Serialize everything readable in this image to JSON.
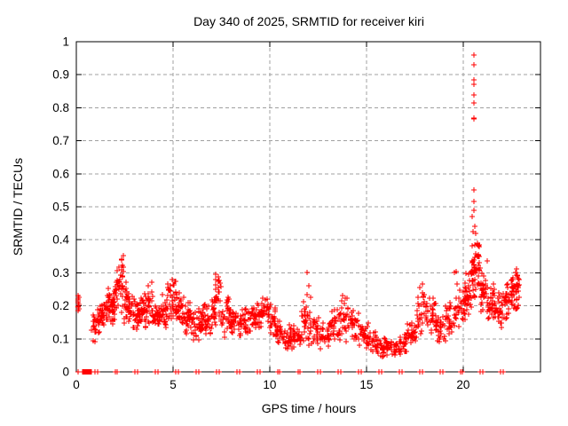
{
  "chart_data": {
    "type": "scatter",
    "title": "Day 340 of 2025, SRMTID for receiver kiri",
    "xlabel": "GPS time / hours",
    "ylabel": "SRMTID / TECUs",
    "xlim": [
      0,
      24
    ],
    "ylim": [
      0,
      1
    ],
    "x_ticks": [
      0,
      5,
      10,
      15,
      20
    ],
    "y_ticks": [
      "0",
      "0.1",
      "0.2",
      "0.3",
      "0.4",
      "0.5",
      "0.6",
      "0.7",
      "0.8",
      "0.9",
      "1"
    ],
    "grid": true,
    "grid_color": "#a0a0a0",
    "border_color": "#000000",
    "legend": "none",
    "series": [
      {
        "name": "SRMTID",
        "marker": "plus",
        "color": "#ff0000",
        "start_cluster": [
          [
            0.08,
            0.195
          ],
          [
            0.1,
            0.2
          ],
          [
            0.12,
            0.205
          ],
          [
            0.09,
            0.21
          ],
          [
            0.11,
            0.215
          ],
          [
            0.1,
            0.22
          ],
          [
            0.12,
            0.225
          ],
          [
            0.09,
            0.23
          ],
          [
            0.13,
            0.19
          ],
          [
            0.11,
            0.185
          ]
        ],
        "outliers": [
          [
            20.55,
            0.96
          ],
          [
            20.58,
            0.93
          ],
          [
            20.55,
            0.885
          ],
          [
            20.57,
            0.87
          ],
          [
            20.56,
            0.84
          ],
          [
            20.58,
            0.815
          ],
          [
            20.54,
            0.77
          ],
          [
            20.57,
            0.765
          ],
          [
            20.56,
            0.55
          ],
          [
            20.58,
            0.515
          ],
          [
            20.55,
            0.49
          ],
          [
            20.48,
            0.47
          ],
          [
            20.6,
            0.44
          ],
          [
            20.52,
            0.425
          ],
          [
            11.93,
            0.3
          ],
          [
            12.03,
            0.26
          ],
          [
            19.62,
            0.305
          ],
          [
            19.55,
            0.3
          ]
        ],
        "zeros": {
          "block": {
            "start": 0.3,
            "end": 0.8,
            "count": 26
          },
          "singles": [
            0.1
          ],
          "pairs": [
            0.95,
            1.08,
            2.0,
            2.13,
            3.05,
            3.18,
            4.1,
            4.23,
            5.15,
            5.28,
            6.2,
            6.33,
            7.25,
            7.38,
            8.3,
            8.43,
            9.35,
            9.48,
            10.4,
            10.53,
            11.45,
            11.58,
            12.5,
            12.63,
            13.55,
            13.68,
            14.6,
            14.73,
            15.65,
            15.78,
            16.7,
            16.83,
            17.75,
            17.88,
            18.8,
            18.93,
            19.85,
            19.98,
            20.9,
            21.03,
            21.95,
            22.08
          ]
        },
        "density_bands": [
          [
            0.8,
            1.05,
            0.09,
            0.2,
            18
          ],
          [
            1.05,
            1.3,
            0.1,
            0.22,
            22
          ],
          [
            1.3,
            1.6,
            0.12,
            0.24,
            26
          ],
          [
            1.6,
            1.9,
            0.13,
            0.26,
            28
          ],
          [
            1.9,
            2.1,
            0.15,
            0.3,
            22
          ],
          [
            2.1,
            2.45,
            0.16,
            0.375,
            34
          ],
          [
            2.45,
            2.7,
            0.14,
            0.28,
            24
          ],
          [
            2.7,
            3.0,
            0.12,
            0.24,
            26
          ],
          [
            3.0,
            3.3,
            0.12,
            0.22,
            26
          ],
          [
            3.3,
            3.55,
            0.13,
            0.25,
            20
          ],
          [
            3.55,
            3.95,
            0.13,
            0.285,
            32
          ],
          [
            3.95,
            4.35,
            0.11,
            0.23,
            30
          ],
          [
            4.35,
            4.7,
            0.11,
            0.24,
            28
          ],
          [
            4.7,
            5.15,
            0.13,
            0.3,
            36
          ],
          [
            5.15,
            5.6,
            0.12,
            0.26,
            32
          ],
          [
            5.6,
            6.0,
            0.1,
            0.23,
            30
          ],
          [
            6.0,
            6.5,
            0.09,
            0.2,
            34
          ],
          [
            6.5,
            7.0,
            0.1,
            0.22,
            36
          ],
          [
            7.0,
            7.2,
            0.12,
            0.26,
            16
          ],
          [
            7.2,
            7.5,
            0.13,
            0.33,
            26
          ],
          [
            7.5,
            8.0,
            0.1,
            0.24,
            34
          ],
          [
            8.0,
            8.5,
            0.1,
            0.2,
            32
          ],
          [
            8.5,
            9.0,
            0.11,
            0.21,
            32
          ],
          [
            9.0,
            9.5,
            0.12,
            0.22,
            32
          ],
          [
            9.5,
            10.0,
            0.12,
            0.235,
            34
          ],
          [
            10.0,
            10.3,
            0.1,
            0.22,
            22
          ],
          [
            10.3,
            10.7,
            0.08,
            0.17,
            26
          ],
          [
            10.7,
            11.2,
            0.06,
            0.15,
            30
          ],
          [
            11.2,
            11.6,
            0.06,
            0.14,
            26
          ],
          [
            11.6,
            12.1,
            0.07,
            0.25,
            32
          ],
          [
            12.1,
            12.6,
            0.07,
            0.18,
            30
          ],
          [
            12.6,
            13.1,
            0.06,
            0.16,
            28
          ],
          [
            13.1,
            13.6,
            0.08,
            0.2,
            30
          ],
          [
            13.6,
            14.1,
            0.08,
            0.25,
            30
          ],
          [
            14.1,
            14.6,
            0.08,
            0.2,
            28
          ],
          [
            14.6,
            15.1,
            0.07,
            0.15,
            28
          ],
          [
            15.1,
            15.6,
            0.05,
            0.13,
            28
          ],
          [
            15.6,
            16.1,
            0.045,
            0.11,
            30
          ],
          [
            16.1,
            16.7,
            0.04,
            0.1,
            34
          ],
          [
            16.7,
            17.1,
            0.05,
            0.12,
            26
          ],
          [
            17.1,
            17.6,
            0.07,
            0.16,
            30
          ],
          [
            17.6,
            18.1,
            0.1,
            0.28,
            32
          ],
          [
            18.1,
            18.6,
            0.11,
            0.25,
            30
          ],
          [
            18.6,
            19.1,
            0.08,
            0.18,
            28
          ],
          [
            19.1,
            19.6,
            0.1,
            0.22,
            28
          ],
          [
            19.6,
            20.1,
            0.12,
            0.28,
            30
          ],
          [
            20.1,
            20.4,
            0.15,
            0.33,
            26
          ],
          [
            20.4,
            20.6,
            0.18,
            0.4,
            24
          ],
          [
            20.55,
            20.85,
            0.2,
            0.45,
            32
          ],
          [
            20.85,
            21.25,
            0.16,
            0.34,
            34
          ],
          [
            21.25,
            21.65,
            0.14,
            0.28,
            30
          ],
          [
            21.65,
            22.05,
            0.12,
            0.25,
            30
          ],
          [
            22.05,
            22.45,
            0.15,
            0.28,
            30
          ],
          [
            22.45,
            22.75,
            0.17,
            0.31,
            28
          ],
          [
            22.75,
            22.95,
            0.19,
            0.33,
            22
          ]
        ]
      }
    ]
  }
}
